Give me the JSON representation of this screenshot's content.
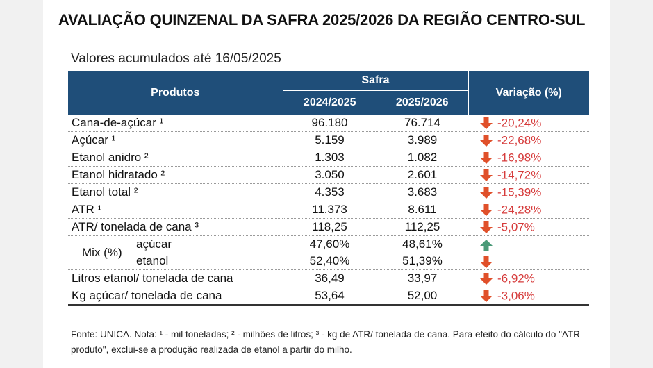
{
  "title": "AVALIAÇÃO QUINZENAL DA SAFRA 2025/2026 DA REGIÃO CENTRO-SUL",
  "subtitle": "Valores acumulados até 16/05/2025",
  "header": {
    "produtos": "Produtos",
    "safra": "Safra",
    "year1": "2024/2025",
    "year2": "2025/2026",
    "variacao": "Variação (%)"
  },
  "rows": [
    {
      "label": "Cana-de-açúcar ¹",
      "y1": "96.180",
      "y2": "76.714",
      "var": "-20,24%",
      "dir": "down"
    },
    {
      "label": "Açúcar ¹",
      "y1": "5.159",
      "y2": "3.989",
      "var": "-22,68%",
      "dir": "down"
    },
    {
      "label": "Etanol anidro ²",
      "y1": "1.303",
      "y2": "1.082",
      "var": "-16,98%",
      "dir": "down"
    },
    {
      "label": "Etanol hidratado ²",
      "y1": "3.050",
      "y2": "2.601",
      "var": "-14,72%",
      "dir": "down"
    },
    {
      "label": "Etanol total ²",
      "y1": "4.353",
      "y2": "3.683",
      "var": "-15,39%",
      "dir": "down"
    },
    {
      "label": "ATR ¹",
      "y1": "11.373",
      "y2": "8.611",
      "var": "-24,28%",
      "dir": "down"
    },
    {
      "label": "ATR/ tonelada de cana ³",
      "y1": "118,25",
      "y2": "112,25",
      "var": "-5,07%",
      "dir": "down"
    }
  ],
  "mix": {
    "label": "Mix (%)",
    "items": [
      {
        "label": "açúcar",
        "y1": "47,60%",
        "y2": "48,61%",
        "dir": "up"
      },
      {
        "label": "etanol",
        "y1": "52,40%",
        "y2": "51,39%",
        "dir": "down"
      }
    ]
  },
  "rows_after": [
    {
      "label": "Litros etanol/ tonelada de cana",
      "y1": "36,49",
      "y2": "33,97",
      "var": "-6,92%",
      "dir": "down"
    },
    {
      "label": "Kg açúcar/ tonelada de cana",
      "y1": "53,64",
      "y2": "52,00",
      "var": "-3,06%",
      "dir": "down"
    }
  ],
  "note": "Fonte: UNICA. Nota: ¹ - mil toneladas; ² - milhões de litros; ³ - kg de ATR/ tonelada de cana. Para efeito do cálculo do \"ATR produto\", exclui-se a produção realizada de etanol a partir do milho.",
  "colors": {
    "header_bg": "#1f4e79",
    "down_arrow": "#e0502a",
    "up_arrow": "#4a9a78",
    "negative_text": "#d63b3b"
  }
}
